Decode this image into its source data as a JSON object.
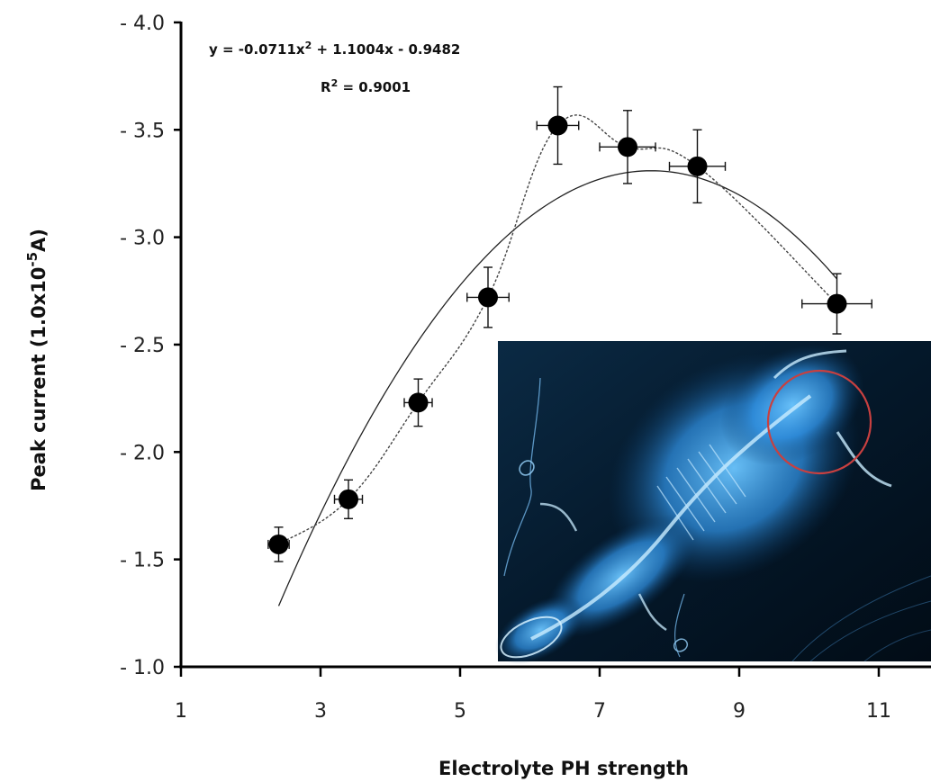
{
  "chart_data": {
    "type": "scatter",
    "xlabel": "Electrolyte PH strength",
    "ylabel_main": "Peak current (1.0x10",
    "ylabel_exp": "-5",
    "ylabel_tail": "A)",
    "xlim": [
      1,
      12
    ],
    "ylim": [
      1.0,
      4.0
    ],
    "x_ticks": [
      1,
      3,
      5,
      7,
      9,
      11
    ],
    "x_tick_labels": [
      "1",
      "3",
      "5",
      "7",
      "9",
      "11"
    ],
    "y_ticks": [
      1.0,
      1.5,
      2.0,
      2.5,
      3.0,
      3.5,
      4.0
    ],
    "y_tick_labels": [
      "- 1.0",
      "- 1.5",
      "- 2.0",
      "- 2.5",
      "- 3.0",
      "- 3.5",
      "- 4.0"
    ],
    "grid": false,
    "points": [
      {
        "x": 2.4,
        "y": 1.57,
        "xerr": 0.15,
        "yerr": 0.08
      },
      {
        "x": 3.4,
        "y": 1.78,
        "xerr": 0.2,
        "yerr": 0.09
      },
      {
        "x": 4.4,
        "y": 2.23,
        "xerr": 0.2,
        "yerr": 0.11
      },
      {
        "x": 5.4,
        "y": 2.72,
        "xerr": 0.3,
        "yerr": 0.14
      },
      {
        "x": 6.4,
        "y": 3.52,
        "xerr": 0.3,
        "yerr": 0.18
      },
      {
        "x": 7.4,
        "y": 3.42,
        "xerr": 0.4,
        "yerr": 0.17
      },
      {
        "x": 8.4,
        "y": 3.33,
        "xerr": 0.4,
        "yerr": 0.17
      },
      {
        "x": 10.4,
        "y": 2.69,
        "xerr": 0.5,
        "yerr": 0.14
      }
    ],
    "trendline": {
      "type": "polynomial",
      "order": 2,
      "coefficients": [
        -0.0711,
        1.1004,
        -0.9482
      ],
      "x_range": [
        2.4,
        10.4
      ],
      "equation_main": "y = -0.0711x",
      "equation_sup": "2",
      "equation_tail": " + 1.1004x - 0.9482",
      "r2_main": "R",
      "r2_sup": "2",
      "r2_tail": " = 0.9001"
    },
    "inset": {
      "description": "x-ray image of a small animal skeleton with a red circle highlighting a region",
      "circle_color": "#c84040",
      "background_color": "#02121e",
      "body_color": "#3aa8ff"
    }
  }
}
